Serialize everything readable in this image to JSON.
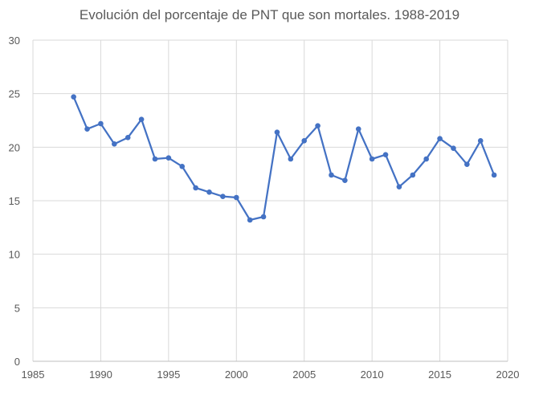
{
  "chart_data": {
    "type": "scatter",
    "title": "Evolución del porcentaje de PNT que son mortales. 1988-2019",
    "xlabel": "",
    "ylabel": "",
    "xlim": [
      1985,
      2020
    ],
    "ylim": [
      0,
      30
    ],
    "x_ticks": [
      1985,
      1990,
      1995,
      2000,
      2005,
      2010,
      2015,
      2020
    ],
    "y_ticks": [
      0,
      5,
      10,
      15,
      20,
      25,
      30
    ],
    "grid": true,
    "legend": "none",
    "line_color": "#4472C4",
    "grid_color": "#d9d9d9",
    "series": [
      {
        "x": [
          1988,
          1989,
          1990,
          1991,
          1992,
          1993,
          1994,
          1995,
          1996,
          1997,
          1998,
          1999,
          2000,
          2001,
          2002,
          2003,
          2004,
          2005,
          2006,
          2007,
          2008,
          2009,
          2010,
          2011,
          2012,
          2013,
          2014,
          2015,
          2016,
          2017,
          2018,
          2019
        ],
        "y": [
          24.7,
          21.7,
          22.2,
          20.3,
          20.9,
          22.6,
          18.9,
          19.0,
          18.2,
          16.2,
          15.8,
          15.4,
          15.3,
          13.2,
          13.5,
          21.4,
          18.9,
          20.6,
          22.0,
          17.4,
          16.9,
          21.7,
          18.9,
          19.3,
          16.3,
          17.4,
          18.9,
          20.8,
          19.9,
          18.4,
          20.6,
          17.4
        ]
      }
    ]
  }
}
